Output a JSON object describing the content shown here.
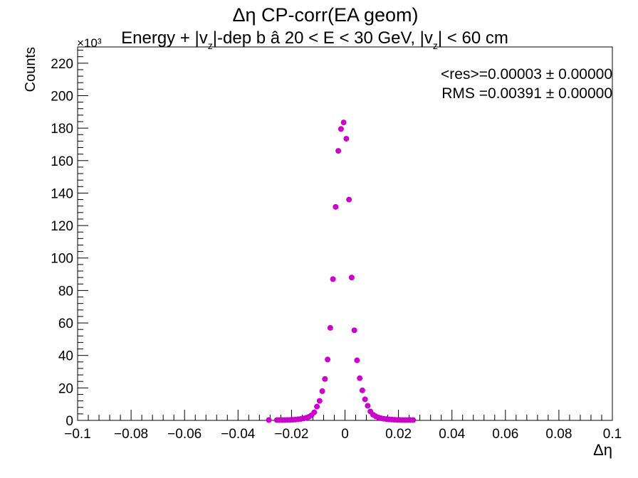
{
  "title": "Δη CP-corr(EA geom)",
  "subtitle": {
    "part1": "Energy + |v",
    "sub1": "z",
    "part2": "|-dep b   â   20 < E < 30 GeV, |v",
    "sub2": "z",
    "part3": "| < 60 cm"
  },
  "stats": {
    "res": "<res>=0.00003 ± 0.00000",
    "rms": "RMS =0.00391 ± 0.00000"
  },
  "axis_exponent": "×10³",
  "colors": {
    "marker": "#cc00cc",
    "axis": "#000000",
    "background": "#ffffff"
  },
  "chart_data": {
    "type": "scatter",
    "xlabel": "Δη",
    "ylabel": "Counts",
    "xlim": [
      -0.1,
      0.1
    ],
    "ylim": [
      0,
      230
    ],
    "y_unit_multiplier": "10^3",
    "x_ticks": [
      -0.1,
      -0.08,
      -0.06,
      -0.04,
      -0.02,
      0,
      0.02,
      0.04,
      0.06,
      0.08,
      0.1
    ],
    "x_tick_labels": [
      "−0.1",
      "−0.08",
      "−0.06",
      "−0.04",
      "−0.02",
      "0",
      "0.02",
      "0.04",
      "0.06",
      "0.08",
      "0.1"
    ],
    "y_ticks": [
      0,
      20,
      40,
      60,
      80,
      100,
      120,
      140,
      160,
      180,
      200,
      220
    ],
    "y_tick_labels": [
      "0",
      "20",
      "40",
      "60",
      "80",
      "100",
      "120",
      "140",
      "160",
      "180",
      "200",
      "220"
    ],
    "grid": false,
    "legend": "none",
    "series": [
      {
        "x": [
          -0.0285,
          -0.0255,
          -0.0245,
          -0.0235,
          -0.0225,
          -0.0215,
          -0.0205,
          -0.0195,
          -0.0185,
          -0.0175,
          -0.0165,
          -0.0155,
          -0.0145,
          -0.0135,
          -0.0125,
          -0.0115,
          -0.0105,
          -0.0095,
          -0.0085,
          -0.0075,
          -0.0065,
          -0.0055,
          -0.0045,
          -0.0035,
          -0.0025,
          -0.0015,
          -0.0005,
          0.0005,
          0.0015,
          0.0025,
          0.0035,
          0.0045,
          0.0055,
          0.0065,
          0.0075,
          0.0085,
          0.0095,
          0.0105,
          0.0115,
          0.0125,
          0.0135,
          0.0145,
          0.0155,
          0.0165,
          0.0175,
          0.0185,
          0.0195,
          0.0205,
          0.0215,
          0.0225,
          0.0235,
          0.0245,
          0.0255
        ],
        "y": [
          0.2,
          0.2,
          0.2,
          0.2,
          0.2,
          0.3,
          0.3,
          0.4,
          0.5,
          0.7,
          0.9,
          1.2,
          1.6,
          2.2,
          3.2,
          5.0,
          8.5,
          12,
          18,
          25.5,
          37.5,
          57,
          87,
          131.5,
          166,
          179.5,
          183.5,
          173.5,
          136,
          88,
          55.5,
          37,
          26,
          18.5,
          13,
          9,
          5.5,
          3.5,
          2.5,
          1.8,
          1.3,
          1.0,
          0.8,
          0.6,
          0.5,
          0.4,
          0.3,
          0.3,
          0.2,
          0.2,
          0.2,
          0.2,
          0.2
        ]
      }
    ]
  }
}
